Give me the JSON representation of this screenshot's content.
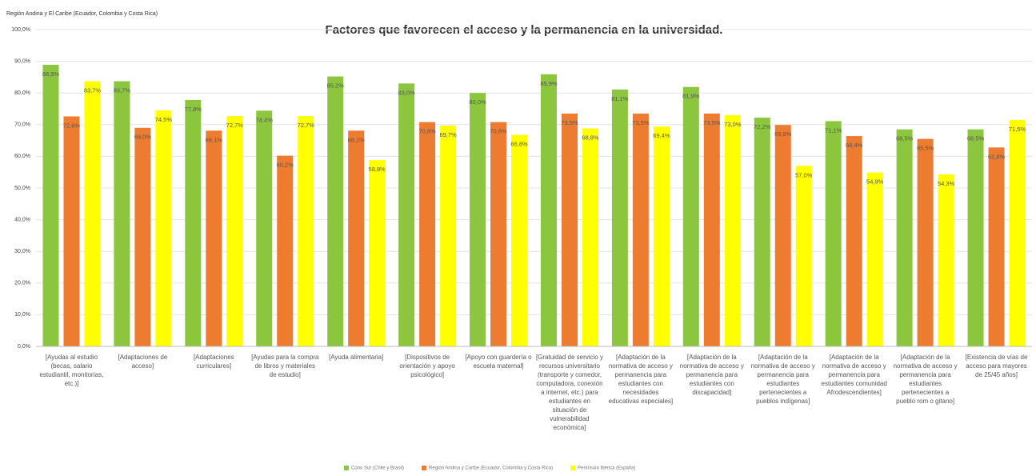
{
  "chart_data": {
    "type": "bar",
    "title": "Factores que favorecen el acceso y la permanencia en la universidad.",
    "subtitle": "Región Andina y El Caribe (Ecuador, Colombia y Costa Rica)",
    "categories": [
      "[Ayudas al estudio (becas, salario estudiantil, monitorías, etc.)]",
      "[Adaptaciones de acceso]",
      "[Adaptaciones curriculares]",
      "[Ayudas para la compra de libros y materiales de estudio]",
      "[Ayuda alimentaria]",
      "[Dispositivos de orientación y apoyo psicológico]",
      "[Apoyo con guardería o escuela maternal]",
      "[Gratuidad de servicio y recursos universitario (transporte y comedor, computadora, conexión a internet, etc.) para estudiantes en situación de vulnerabilidad económica]",
      "[Adaptación de la normativa de acceso y permanencia para estudiantes con necesidades educativas especiales]",
      "[Adaptación de la normativa de acceso y permanencia para estudiantes con discapacidad]",
      "[Adaptación de la normativa de acceso y permanencia para estudiantes pertenecientes a pueblos indígenas]",
      "[Adaptación de la normativa de acceso y permanencia para estudiantes comunidad Afrodescendientes]",
      "[Adaptación de la normativa de acceso y permanencia para estudiantes pertenecientes a pueblo rom o gitano]",
      "[Existencia de vías de acceso para mayores de 25/45 años]"
    ],
    "series": [
      {
        "name": "Cono Sur (Chile y Brasil)",
        "color": "#8cc63e",
        "values": [
          88.9,
          83.7,
          77.8,
          74.4,
          85.2,
          83.0,
          80.0,
          85.9,
          81.1,
          81.9,
          72.2,
          71.1,
          68.5,
          68.5
        ],
        "value_labels": [
          "88,9%",
          "83,7%",
          "77,8%",
          "74,4%",
          "85,2%",
          "83,0%",
          "80,0%",
          "85,9%",
          "81,1%",
          "81,9%",
          "72,2%",
          "71,1%",
          "68,5%",
          "68,5%"
        ]
      },
      {
        "name": "Región Andina y Caribe (Ecuador, Colombia y Costa Rica)",
        "color": "#ee7c30",
        "values": [
          72.6,
          69.0,
          68.1,
          60.2,
          68.1,
          70.8,
          70.8,
          73.5,
          73.5,
          73.5,
          69.9,
          66.4,
          65.5,
          62.8
        ],
        "value_labels": [
          "72,6%",
          "69,0%",
          "68,1%",
          "60,2%",
          "68,1%",
          "70,8%",
          "70,8%",
          "73,5%",
          "73,5%",
          "73,5%",
          "69,9%",
          "66,4%",
          "65,5%",
          "62,8%"
        ]
      },
      {
        "name": "Península Ibérica (España)",
        "color": "#ffff00",
        "values": [
          83.7,
          74.5,
          72.7,
          72.7,
          58.8,
          69.7,
          66.8,
          68.8,
          69.4,
          73.0,
          57.0,
          54.9,
          54.3,
          71.5
        ],
        "value_labels": [
          "83,7%",
          "74,5%",
          "72,7%",
          "72,7%",
          "58,8%",
          "69,7%",
          "66,8%",
          "68,8%",
          "69,4%",
          "73,0%",
          "57,0%",
          "54,9%",
          "54,3%",
          "71,5%"
        ]
      }
    ],
    "ylim": [
      0,
      100
    ],
    "yticks": [
      {
        "value": 0,
        "label": "0,0%"
      },
      {
        "value": 10,
        "label": "10,0%"
      },
      {
        "value": 20,
        "label": "20,0%"
      },
      {
        "value": 30,
        "label": "30,0%"
      },
      {
        "value": 40,
        "label": "40,0%"
      },
      {
        "value": 50,
        "label": "50,0%"
      },
      {
        "value": 60,
        "label": "60,0%"
      },
      {
        "value": 70,
        "label": "70,0%"
      },
      {
        "value": 80,
        "label": "80,0%"
      },
      {
        "value": 90,
        "label": "90,0%"
      },
      {
        "value": 100,
        "label": "100,0%"
      }
    ],
    "grid": true,
    "legend": "bottom"
  }
}
